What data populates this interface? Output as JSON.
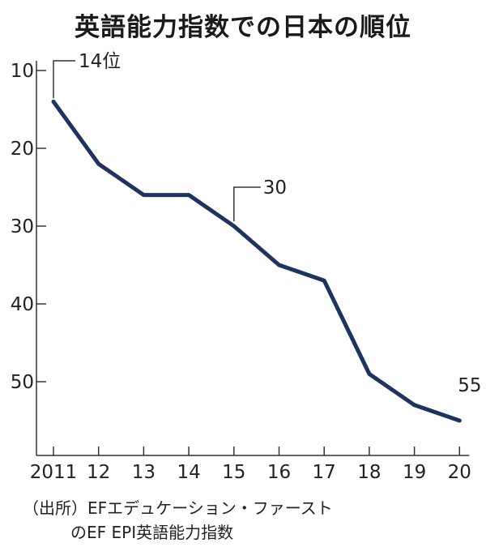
{
  "chart_data": {
    "type": "line",
    "title": "英語能力指数での日本の順位",
    "x": [
      "2011",
      "12",
      "13",
      "14",
      "15",
      "16",
      "17",
      "18",
      "19",
      "20"
    ],
    "series": [
      {
        "values": [
          14,
          22,
          26,
          26,
          30,
          35,
          37,
          49,
          53,
          55
        ]
      }
    ],
    "y_ticks": [
      10,
      20,
      30,
      40,
      50
    ],
    "ylim": [
      10,
      58
    ],
    "y_inverted": true,
    "annotations": [
      {
        "x": "2011",
        "value": 14,
        "text": "14位"
      },
      {
        "x": "15",
        "value": 30,
        "text": "30"
      },
      {
        "x": "20",
        "value": 55,
        "text": "55"
      }
    ],
    "line_color": "#1d3461",
    "grid": false
  },
  "source": {
    "line1": "（出所）EFエデュケーション・ファースト",
    "line2": "のEF EPI英語能力指数"
  }
}
